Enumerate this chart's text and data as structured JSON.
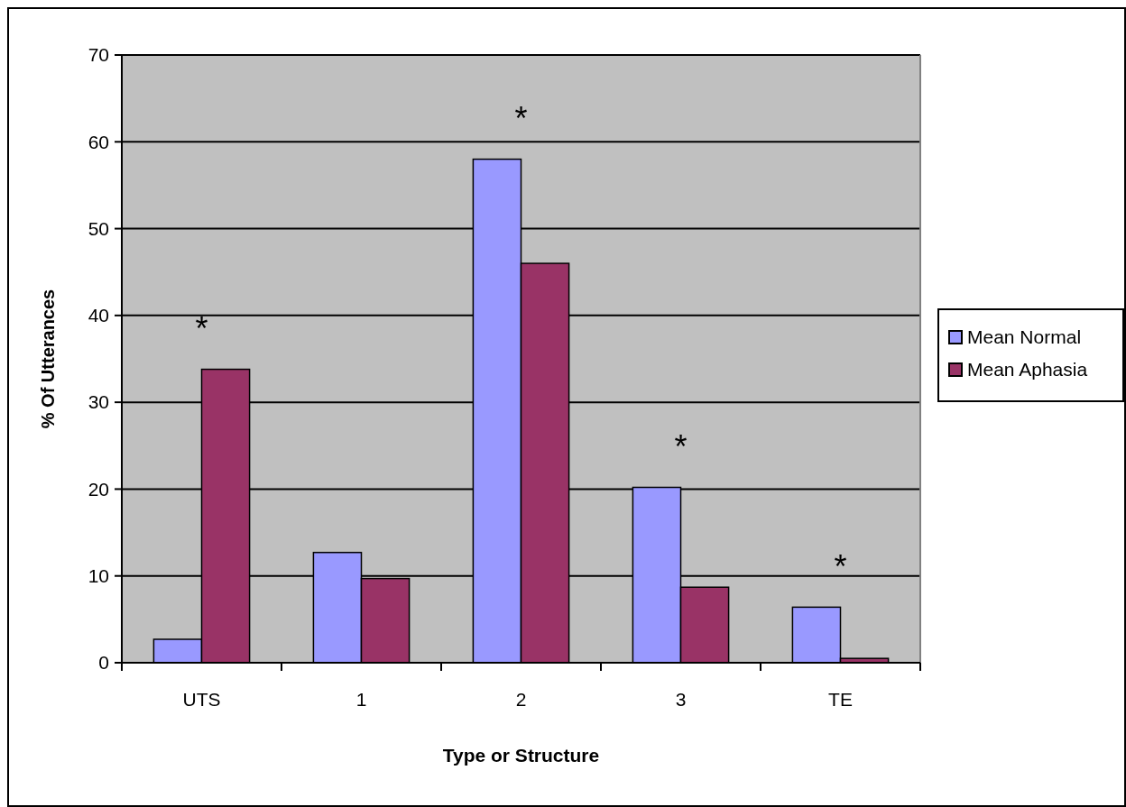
{
  "chart_data": {
    "type": "bar",
    "xlabel": "Type or Structure",
    "ylabel": "% Of Utterances",
    "categories": [
      "UTS",
      "1",
      "2",
      "3",
      "TE"
    ],
    "series": [
      {
        "name": "Mean Normal",
        "color": "#9999ff",
        "values": [
          2.7,
          12.7,
          58.0,
          20.2,
          6.4
        ]
      },
      {
        "name": "Mean Aphasia",
        "color": "#993366",
        "values": [
          33.8,
          9.7,
          46.0,
          8.7,
          0.5
        ]
      }
    ],
    "ylim": [
      0,
      70
    ],
    "yticks": [
      0,
      10,
      20,
      30,
      40,
      50,
      60,
      70
    ],
    "grid": "y",
    "legend": "right",
    "annotations": [
      {
        "text": "*",
        "x": "UTS",
        "y": 33.8
      },
      {
        "text": "*",
        "x": "2",
        "y": 58.0
      },
      {
        "text": "*",
        "x": "3",
        "y": 20.2
      },
      {
        "text": "*",
        "x": "TE",
        "y": 6.4
      }
    ]
  }
}
